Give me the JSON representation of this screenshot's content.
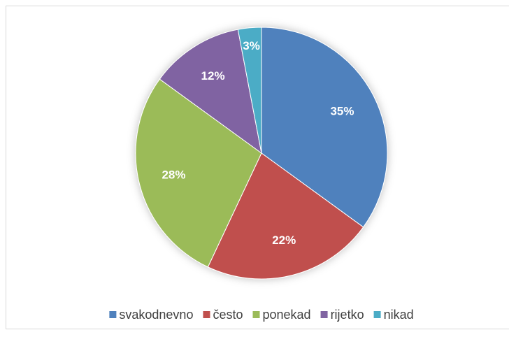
{
  "chart_data": {
    "type": "pie",
    "categories": [
      "svakodnevno",
      "često",
      "ponekad",
      "rijetko",
      "nikad"
    ],
    "values": [
      35,
      22,
      28,
      12,
      3
    ],
    "value_labels": [
      "35%",
      "22%",
      "28%",
      "12%",
      "3%"
    ],
    "colors": [
      "#4f81bd",
      "#c0504d",
      "#9bbb59",
      "#8064a2",
      "#4bacc6"
    ],
    "legend": "bottom"
  }
}
